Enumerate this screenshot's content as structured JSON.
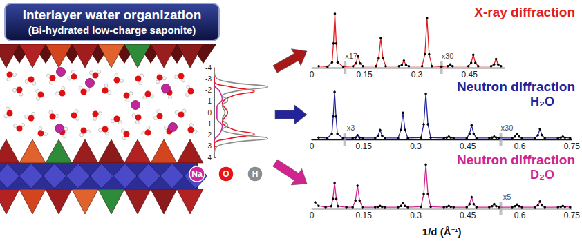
{
  "header": {
    "title": "Interlayer water organization",
    "subtitle": "(Bi-hydrated low-charge saponite)"
  },
  "chart_data": [
    {
      "type": "line",
      "xlim": [
        0,
        1.1
      ],
      "ylim": [
        4,
        -4
      ],
      "yticks": [
        -4,
        -3,
        -2,
        -1,
        0,
        1,
        2,
        3,
        4
      ],
      "tick_labels": "y",
      "series": [
        {
          "name": "Na",
          "color": "#d0269a",
          "values": [
            [
              0,
              -4
            ],
            [
              0,
              -2.5
            ],
            [
              0.1,
              -1.9
            ],
            [
              0.15,
              -1.2
            ],
            [
              0.05,
              -0.5
            ],
            [
              0.05,
              0.5
            ],
            [
              0.15,
              1.2
            ],
            [
              0.1,
              1.9
            ],
            [
              0,
              2.5
            ],
            [
              0,
              4
            ]
          ]
        },
        {
          "name": "O",
          "color": "#e8141b",
          "values": [
            [
              0,
              -4
            ],
            [
              0,
              -2.8
            ],
            [
              0.3,
              -2.3
            ],
            [
              0.75,
              -1.9
            ],
            [
              0.35,
              -1.5
            ],
            [
              0.15,
              -0.8
            ],
            [
              0.25,
              0
            ],
            [
              0.15,
              0.8
            ],
            [
              0.35,
              1.5
            ],
            [
              0.75,
              1.9
            ],
            [
              0.3,
              2.3
            ],
            [
              0,
              2.8
            ],
            [
              0,
              4
            ]
          ]
        },
        {
          "name": "H",
          "color": "#8c8c8c",
          "values": [
            [
              0,
              -4
            ],
            [
              0.02,
              -3.2
            ],
            [
              0.3,
              -2.7
            ],
            [
              1.0,
              -2.3
            ],
            [
              0.4,
              -1.9
            ],
            [
              0.15,
              -1.5
            ],
            [
              0.25,
              -1.1
            ],
            [
              0.15,
              -0.6
            ],
            [
              0.2,
              0
            ],
            [
              0.15,
              0.6
            ],
            [
              0.25,
              1.1
            ],
            [
              0.15,
              1.5
            ],
            [
              0.4,
              1.9
            ],
            [
              1.0,
              2.3
            ],
            [
              0.3,
              2.7
            ],
            [
              0.02,
              3.2
            ],
            [
              0,
              4
            ]
          ]
        }
      ]
    },
    {
      "type": "line",
      "title": "X-ray diffraction",
      "xlim": [
        0,
        0.55
      ],
      "xticks": [
        0,
        0.15,
        0.3,
        0.45
      ],
      "ylim": [
        0,
        110
      ],
      "tick_labels": "x",
      "annotations": [
        {
          "text": "x17",
          "x": 0.095
        },
        {
          "text": "x30",
          "x": 0.37
        }
      ],
      "series": [
        {
          "color": "#e01f1f",
          "marker": "circle",
          "values": [
            [
              0.02,
              3
            ],
            [
              0.045,
              2
            ],
            [
              0.058,
              10
            ],
            [
              0.062,
              45
            ],
            [
              0.066,
              100
            ],
            [
              0.07,
              45
            ],
            [
              0.074,
              10
            ],
            [
              0.09,
              2
            ],
            [
              0.118,
              3
            ],
            [
              0.126,
              8
            ],
            [
              0.132,
              22
            ],
            [
              0.138,
              8
            ],
            [
              0.146,
              3
            ],
            [
              0.183,
              3
            ],
            [
              0.191,
              18
            ],
            [
              0.197,
              55
            ],
            [
              0.203,
              18
            ],
            [
              0.211,
              3
            ],
            [
              0.249,
              3
            ],
            [
              0.257,
              5
            ],
            [
              0.263,
              13
            ],
            [
              0.269,
              5
            ],
            [
              0.277,
              3
            ],
            [
              0.315,
              3
            ],
            [
              0.323,
              25
            ],
            [
              0.329,
              92
            ],
            [
              0.335,
              25
            ],
            [
              0.343,
              3
            ],
            [
              0.37,
              2
            ],
            [
              0.388,
              3
            ],
            [
              0.395,
              6
            ],
            [
              0.402,
              3
            ],
            [
              0.447,
              3
            ],
            [
              0.455,
              9
            ],
            [
              0.461,
              24
            ],
            [
              0.467,
              9
            ],
            [
              0.475,
              3
            ],
            [
              0.512,
              3
            ],
            [
              0.52,
              6
            ],
            [
              0.526,
              16
            ],
            [
              0.532,
              6
            ],
            [
              0.54,
              3
            ]
          ]
        }
      ]
    },
    {
      "type": "line",
      "title": "Neutron diffraction",
      "subtitle": "H₂O",
      "xlim": [
        0,
        0.75
      ],
      "xticks": [
        0,
        0.15,
        0.3,
        0.45,
        0.6,
        0.75
      ],
      "ylim": [
        0,
        110
      ],
      "tick_labels": "x",
      "annotations": [
        {
          "text": "x3",
          "x": 0.095
        },
        {
          "text": "x30",
          "x": 0.545
        }
      ],
      "series": [
        {
          "color": "#24249a",
          "marker": "circle",
          "values": [
            [
              0.02,
              4
            ],
            [
              0.045,
              3
            ],
            [
              0.058,
              12
            ],
            [
              0.062,
              48
            ],
            [
              0.066,
              100
            ],
            [
              0.07,
              48
            ],
            [
              0.074,
              12
            ],
            [
              0.09,
              3
            ],
            [
              0.118,
              3
            ],
            [
              0.126,
              4
            ],
            [
              0.132,
              9
            ],
            [
              0.138,
              4
            ],
            [
              0.146,
              3
            ],
            [
              0.183,
              3
            ],
            [
              0.191,
              8
            ],
            [
              0.197,
              20
            ],
            [
              0.203,
              8
            ],
            [
              0.211,
              3
            ],
            [
              0.249,
              3
            ],
            [
              0.257,
              20
            ],
            [
              0.263,
              56
            ],
            [
              0.269,
              20
            ],
            [
              0.277,
              3
            ],
            [
              0.315,
              4
            ],
            [
              0.323,
              32
            ],
            [
              0.329,
              96
            ],
            [
              0.335,
              32
            ],
            [
              0.343,
              4
            ],
            [
              0.381,
              3
            ],
            [
              0.389,
              4
            ],
            [
              0.395,
              6
            ],
            [
              0.401,
              4
            ],
            [
              0.409,
              3
            ],
            [
              0.447,
              3
            ],
            [
              0.455,
              12
            ],
            [
              0.461,
              30
            ],
            [
              0.467,
              12
            ],
            [
              0.475,
              3
            ],
            [
              0.512,
              3
            ],
            [
              0.52,
              4
            ],
            [
              0.526,
              6
            ],
            [
              0.532,
              4
            ],
            [
              0.54,
              3
            ],
            [
              0.578,
              3
            ],
            [
              0.586,
              6
            ],
            [
              0.592,
              12
            ],
            [
              0.598,
              6
            ],
            [
              0.606,
              3
            ],
            [
              0.644,
              3
            ],
            [
              0.652,
              9
            ],
            [
              0.658,
              22
            ],
            [
              0.664,
              9
            ],
            [
              0.672,
              3
            ],
            [
              0.71,
              3
            ],
            [
              0.718,
              4
            ],
            [
              0.724,
              6
            ],
            [
              0.73,
              4
            ],
            [
              0.745,
              3
            ]
          ]
        }
      ]
    },
    {
      "type": "line",
      "title": "Neutron diffraction",
      "subtitle": "D₂O",
      "xlabel": "1/d (Å⁻¹)",
      "xlim": [
        0,
        0.75
      ],
      "xticks": [
        0,
        0.15,
        0.3,
        0.45,
        0.6,
        0.75
      ],
      "ylim": [
        0,
        110
      ],
      "tick_labels": "x",
      "annotations": [
        {
          "text": "x5",
          "x": 0.545
        }
      ],
      "series": [
        {
          "color": "#d0258f",
          "marker": "circle",
          "values": [
            [
              0.01,
              14
            ],
            [
              0.02,
              6
            ],
            [
              0.04,
              3
            ],
            [
              0.056,
              5
            ],
            [
              0.061,
              22
            ],
            [
              0.066,
              58
            ],
            [
              0.071,
              22
            ],
            [
              0.076,
              5
            ],
            [
              0.1,
              3
            ],
            [
              0.118,
              3
            ],
            [
              0.126,
              18
            ],
            [
              0.132,
              52
            ],
            [
              0.138,
              18
            ],
            [
              0.146,
              3
            ],
            [
              0.183,
              3
            ],
            [
              0.191,
              4
            ],
            [
              0.197,
              6
            ],
            [
              0.203,
              4
            ],
            [
              0.211,
              3
            ],
            [
              0.249,
              3
            ],
            [
              0.257,
              6
            ],
            [
              0.263,
              13
            ],
            [
              0.269,
              6
            ],
            [
              0.277,
              3
            ],
            [
              0.315,
              4
            ],
            [
              0.323,
              33
            ],
            [
              0.329,
              100
            ],
            [
              0.335,
              33
            ],
            [
              0.343,
              4
            ],
            [
              0.381,
              3
            ],
            [
              0.389,
              4
            ],
            [
              0.395,
              6
            ],
            [
              0.401,
              4
            ],
            [
              0.409,
              3
            ],
            [
              0.447,
              3
            ],
            [
              0.455,
              10
            ],
            [
              0.461,
              26
            ],
            [
              0.467,
              10
            ],
            [
              0.475,
              3
            ],
            [
              0.512,
              3
            ],
            [
              0.52,
              5
            ],
            [
              0.526,
              10
            ],
            [
              0.532,
              5
            ],
            [
              0.54,
              3
            ],
            [
              0.578,
              3
            ],
            [
              0.586,
              5
            ],
            [
              0.592,
              9
            ],
            [
              0.598,
              5
            ],
            [
              0.606,
              3
            ],
            [
              0.644,
              3
            ],
            [
              0.652,
              7
            ],
            [
              0.658,
              16
            ],
            [
              0.664,
              7
            ],
            [
              0.672,
              3
            ],
            [
              0.71,
              3
            ],
            [
              0.718,
              4
            ],
            [
              0.724,
              6
            ],
            [
              0.73,
              4
            ],
            [
              0.745,
              3
            ]
          ]
        }
      ]
    }
  ]
}
